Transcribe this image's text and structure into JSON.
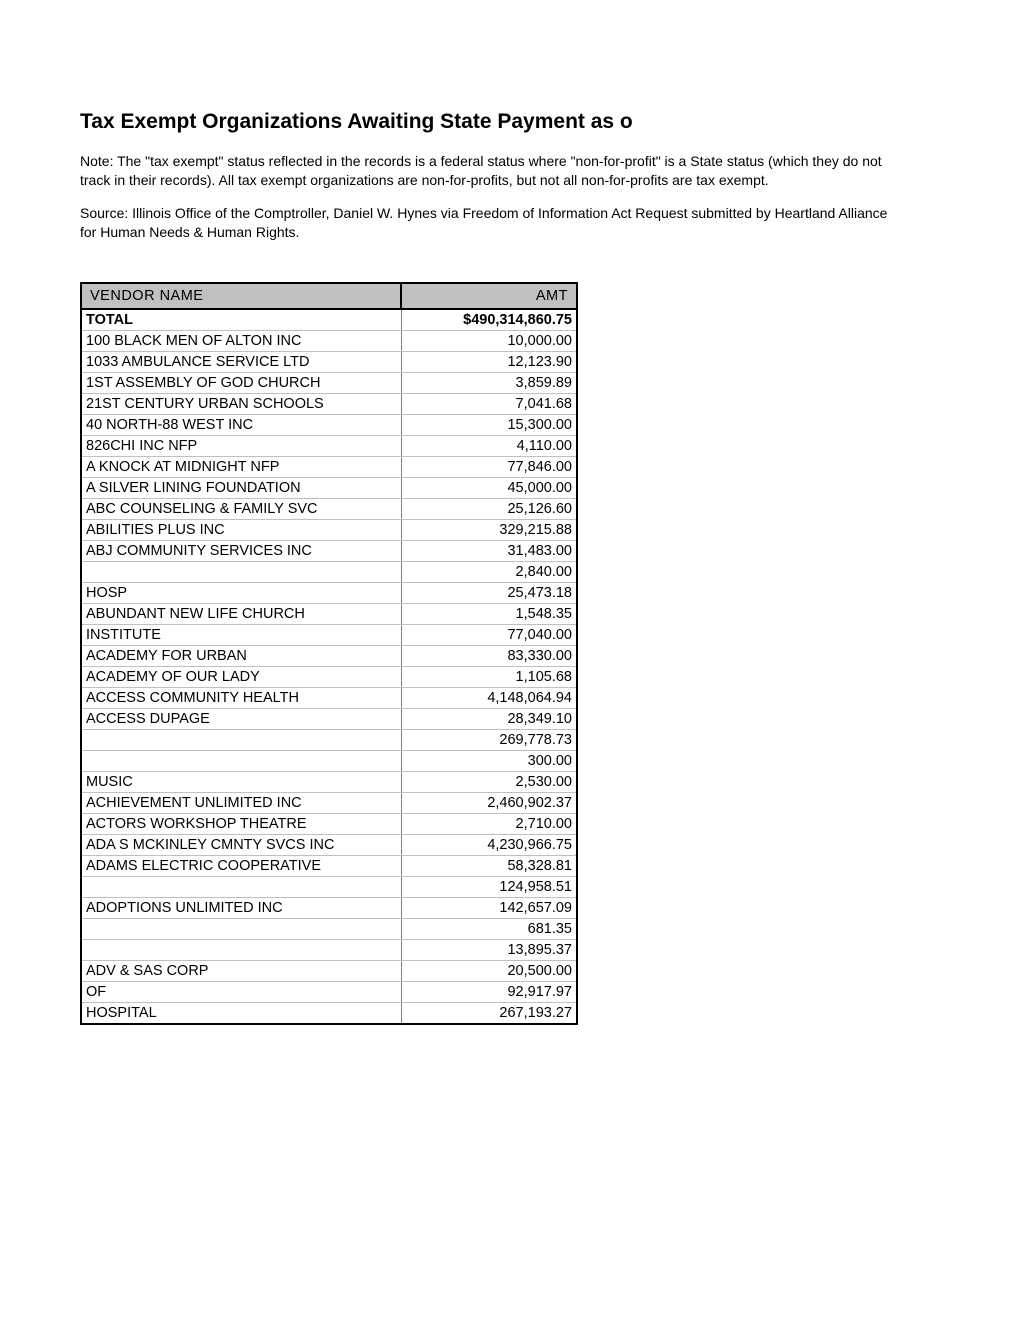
{
  "title": "Tax Exempt Organizations Awaiting State Payment as o",
  "note": "Note: The \"tax exempt\" status reflected in the records is a federal status where \"non-for-profit\" is a State status (which they do not track in their records). All tax exempt organizations are non-for-profits, but not all non-for-profits are tax exempt.",
  "source": "Source: Illinois Office of the Comptroller, Daniel W. Hynes via Freedom of Information Act Request submitted by Heartland Alliance for Human Needs & Human Rights.",
  "table": {
    "columns": [
      "VENDOR NAME",
      "AMT"
    ],
    "total_row": {
      "vendor": "TOTAL",
      "amt": "$490,314,860.75"
    },
    "rows": [
      {
        "vendor": "100 BLACK MEN OF ALTON INC",
        "amt": "10,000.00"
      },
      {
        "vendor": "1033 AMBULANCE SERVICE LTD",
        "amt": "12,123.90"
      },
      {
        "vendor": "1ST ASSEMBLY OF GOD CHURCH",
        "amt": "3,859.89"
      },
      {
        "vendor": "21ST CENTURY URBAN SCHOOLS",
        "amt": "7,041.68"
      },
      {
        "vendor": "40 NORTH-88 WEST INC",
        "amt": "15,300.00"
      },
      {
        "vendor": "826CHI INC NFP",
        "amt": "4,110.00"
      },
      {
        "vendor": "A KNOCK AT MIDNIGHT NFP",
        "amt": "77,846.00"
      },
      {
        "vendor": "A SILVER LINING FOUNDATION",
        "amt": "45,000.00"
      },
      {
        "vendor": "ABC COUNSELING & FAMILY SVC",
        "amt": "25,126.60"
      },
      {
        "vendor": "ABILITIES PLUS INC",
        "amt": "329,215.88"
      },
      {
        "vendor": "ABJ COMMUNITY SERVICES INC",
        "amt": "31,483.00"
      },
      {
        "vendor": "",
        "amt": "2,840.00"
      },
      {
        "vendor": "HOSP",
        "amt": "25,473.18"
      },
      {
        "vendor": "ABUNDANT NEW LIFE CHURCH",
        "amt": "1,548.35"
      },
      {
        "vendor": "INSTITUTE",
        "amt": "77,040.00"
      },
      {
        "vendor": "ACADEMY FOR URBAN",
        "amt": "83,330.00"
      },
      {
        "vendor": "ACADEMY OF OUR LADY",
        "amt": "1,105.68"
      },
      {
        "vendor": "ACCESS COMMUNITY HEALTH",
        "amt": "4,148,064.94"
      },
      {
        "vendor": "ACCESS DUPAGE",
        "amt": "28,349.10"
      },
      {
        "vendor": "",
        "amt": "269,778.73"
      },
      {
        "vendor": "",
        "amt": "300.00"
      },
      {
        "vendor": "MUSIC",
        "amt": "2,530.00"
      },
      {
        "vendor": "ACHIEVEMENT UNLIMITED INC",
        "amt": "2,460,902.37"
      },
      {
        "vendor": "ACTORS WORKSHOP THEATRE",
        "amt": "2,710.00"
      },
      {
        "vendor": "ADA S MCKINLEY CMNTY SVCS INC",
        "amt": "4,230,966.75"
      },
      {
        "vendor": "ADAMS ELECTRIC COOPERATIVE",
        "amt": "58,328.81"
      },
      {
        "vendor": "",
        "amt": "124,958.51"
      },
      {
        "vendor": "ADOPTIONS UNLIMITED INC",
        "amt": "142,657.09"
      },
      {
        "vendor": "",
        "amt": "681.35"
      },
      {
        "vendor": "",
        "amt": "13,895.37"
      },
      {
        "vendor": "ADV & SAS CORP",
        "amt": "20,500.00"
      },
      {
        "vendor": "OF",
        "amt": "92,917.97"
      },
      {
        "vendor": "HOSPITAL",
        "amt": "267,193.27"
      }
    ]
  }
}
